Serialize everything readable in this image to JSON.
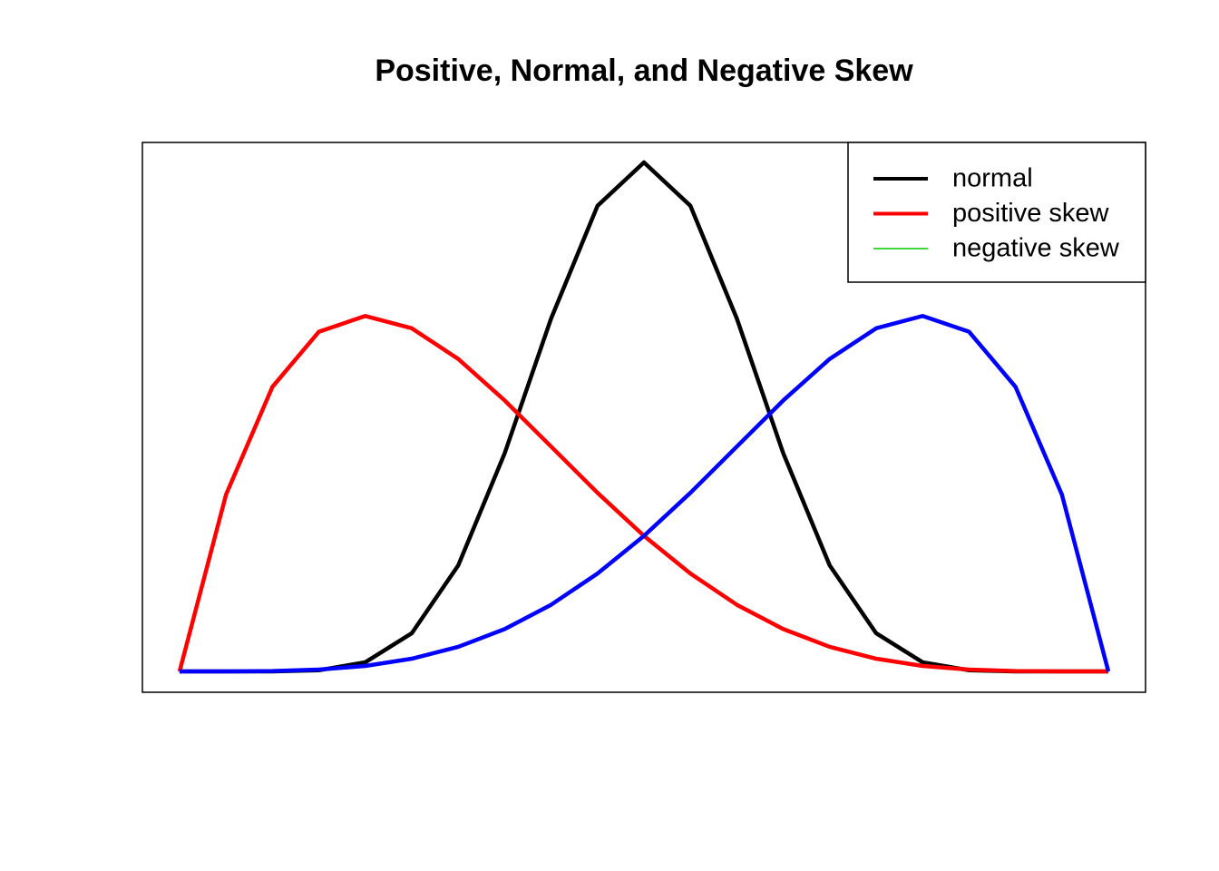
{
  "chart_data": {
    "type": "line",
    "title": "Positive, Normal, and Negative Skew",
    "x": [
      0,
      0.05,
      0.1,
      0.15,
      0.2,
      0.25,
      0.3,
      0.35,
      0.4,
      0.45,
      0.5,
      0.55,
      0.6,
      0.65,
      0.7,
      0.75,
      0.8,
      0.85,
      0.9,
      0.95,
      1
    ],
    "series": [
      {
        "name": "normal",
        "color": "#000000",
        "legend_color": "#000000",
        "legend_width": 4,
        "values": [
          0,
          0,
          0.0004,
          0.0082,
          0.0635,
          0.264,
          0.733,
          1.508,
          2.44,
          3.22,
          3.52,
          3.22,
          2.44,
          1.508,
          0.733,
          0.264,
          0.0635,
          0.0082,
          0.0004,
          0,
          0
        ]
      },
      {
        "name": "positive skew",
        "color": "#ff0000",
        "legend_color": "#ff0000",
        "legend_width": 4,
        "values": [
          0,
          1.222,
          1.968,
          2.349,
          2.458,
          2.373,
          2.161,
          1.874,
          1.555,
          1.235,
          0.9375,
          0.677,
          0.461,
          0.293,
          0.17,
          0.088,
          0.038,
          0.013,
          0.0027,
          0.0002,
          0
        ]
      },
      {
        "name": "negative skew",
        "color": "#0000ff",
        "legend_color": "#00cc00",
        "legend_width": 1.5,
        "values": [
          0,
          0.0002,
          0.0027,
          0.013,
          0.038,
          0.088,
          0.17,
          0.293,
          0.461,
          0.677,
          0.9375,
          1.235,
          1.555,
          1.874,
          2.161,
          2.373,
          2.458,
          2.349,
          1.968,
          1.222,
          0
        ]
      }
    ],
    "xlim": [
      -0.04,
      1.04
    ],
    "ylim": [
      -0.144,
      3.658
    ],
    "legend": "top-right"
  }
}
